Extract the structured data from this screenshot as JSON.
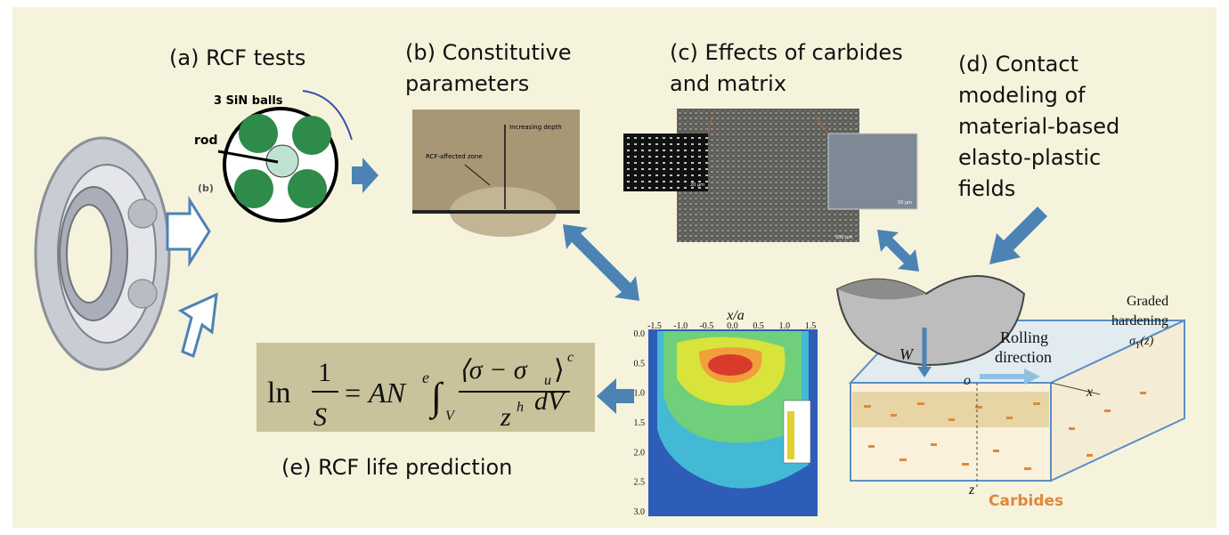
{
  "panel_a": {
    "title": "(a) RCF tests",
    "balls_label": "3 SiN balls",
    "rod_label": "rod",
    "sub_label": "(b)"
  },
  "panel_b": {
    "title_lines": [
      "(b) Constitutive",
      "parameters"
    ],
    "depth_label": "Increasing depth",
    "zone_label": "RCF-affected zone"
  },
  "panel_c": {
    "title_lines": [
      "(c) Effects of carbides",
      "and matrix"
    ],
    "scales": [
      "20 µm",
      "50 µm",
      "500 µm"
    ]
  },
  "panel_d": {
    "title_lines": [
      "(d) Contact",
      "modeling of",
      "material-based",
      "elasto-plastic",
      "fields"
    ],
    "graded_lines": [
      "Graded",
      "hardening"
    ],
    "sigma": "σ",
    "sigma_sub": "Y",
    "sigma_arg": "(z)",
    "rolling_lines": [
      "Rolling",
      "direction"
    ],
    "load": "W",
    "origin": "o",
    "x_axis": "x",
    "z_axis": "z",
    "carbides": "Carbides"
  },
  "contour": {
    "x_label": "x/a",
    "x_ticks": [
      "-1.5",
      "-1.0",
      "-0.5",
      "0.0",
      "0.5",
      "1.0",
      "1.5"
    ],
    "y_ticks": [
      "0.0",
      "0.5",
      "1.0",
      "1.5",
      "2.0",
      "2.5",
      "3.0"
    ]
  },
  "equation": {
    "ln": "ln",
    "num": "1",
    "den": "S",
    "eq": "= AN",
    "exp_e": "e",
    "int": "∫",
    "int_sub": "V",
    "bracket": "⟨σ − σ",
    "sub_u": "u",
    "close": "⟩",
    "exp_c": "c",
    "z": "z",
    "exp_h": "h",
    "dv": "dV"
  },
  "panel_e": {
    "title": "(e) RCF life prediction"
  }
}
